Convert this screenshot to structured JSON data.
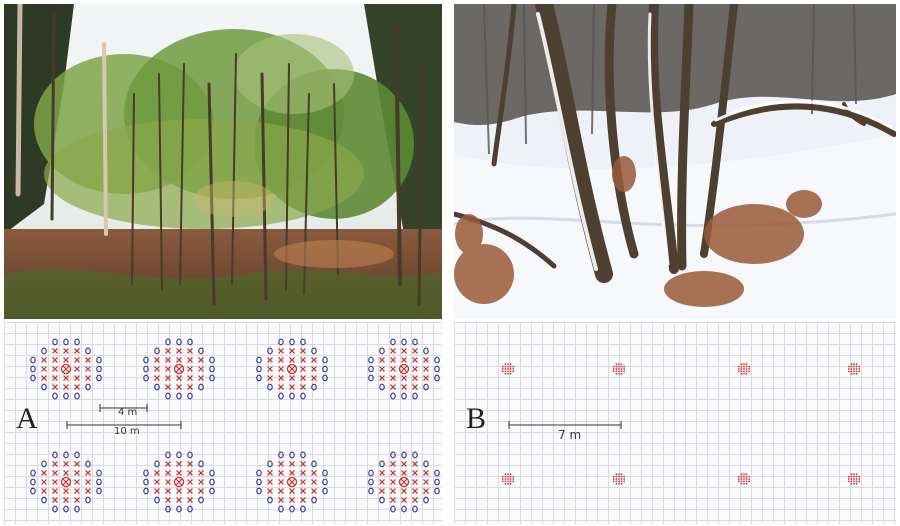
{
  "panels": {
    "a": {
      "letter": "A",
      "scale_short": "4 m",
      "scale_long": "10 m",
      "marks": {
        "circle_color": "#3a3aa0",
        "cross_color": "#c8322d"
      }
    },
    "b": {
      "letter": "B",
      "scale": "7 m",
      "marks": {
        "dot_color": "#d1352e"
      }
    }
  },
  "photos": {
    "forest": {
      "sky": "#e9eef3",
      "canopy": "#6f9a3e",
      "floor": "#8a5a3c"
    },
    "snow": {
      "snow": "#eef1f7",
      "bark": "#4d4030",
      "leaves": "#9a5a3a"
    }
  }
}
